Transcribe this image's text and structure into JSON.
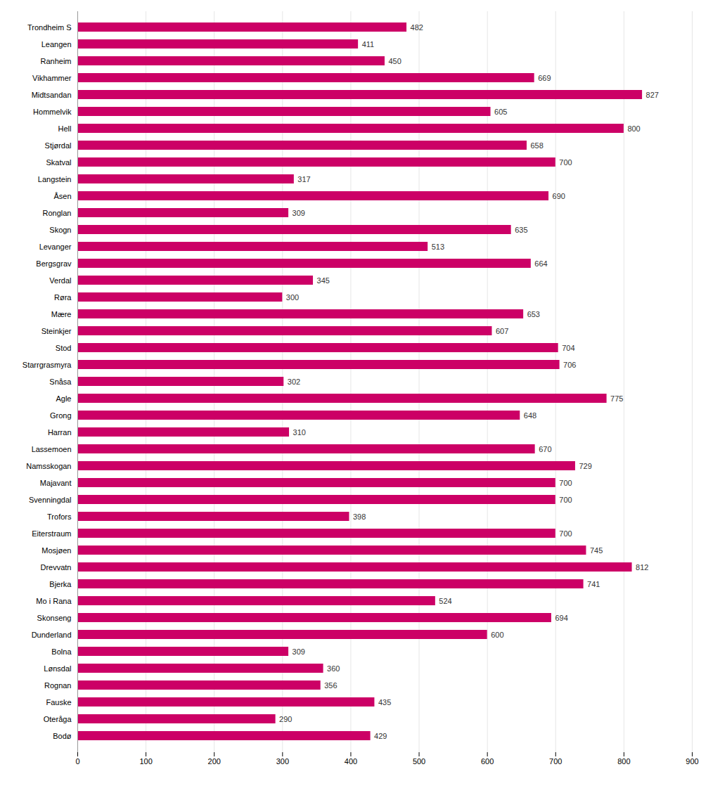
{
  "chart_data": {
    "type": "bar",
    "orientation": "horizontal",
    "categories": [
      "Trondheim S",
      "Leangen",
      "Ranheim",
      "Vikhammer",
      "Midtsandan",
      "Hommelvik",
      "Hell",
      "Stjørdal",
      "Skatval",
      "Langstein",
      "Åsen",
      "Ronglan",
      "Skogn",
      "Levanger",
      "Bergsgrav",
      "Verdal",
      "Røra",
      "Mære",
      "Steinkjer",
      "Stod",
      "Starrgrasmyra",
      "Snåsa",
      "Agle",
      "Grong",
      "Harran",
      "Lassemoen",
      "Namsskogan",
      "Majavant",
      "Svenningdal",
      "Trofors",
      "Eiterstraum",
      "Mosjøen",
      "Drevvatn",
      "Bjerka",
      "Mo i Rana",
      "Skonseng",
      "Dunderland",
      "Bolna",
      "Lønsdal",
      "Rognan",
      "Fauske",
      "Oteråga",
      "Bodø"
    ],
    "values": [
      482,
      411,
      450,
      669,
      827,
      605,
      800,
      658,
      700,
      317,
      690,
      309,
      635,
      513,
      664,
      345,
      300,
      653,
      607,
      704,
      706,
      302,
      775,
      648,
      310,
      670,
      729,
      700,
      700,
      398,
      700,
      745,
      812,
      741,
      524,
      694,
      600,
      309,
      360,
      356,
      435,
      290,
      429
    ],
    "color": "#cc0066",
    "xlim": [
      0,
      900
    ],
    "xticks": [
      0,
      100,
      200,
      300,
      400,
      500,
      600,
      700,
      800,
      900
    ],
    "grid": true,
    "data_labels": true
  }
}
